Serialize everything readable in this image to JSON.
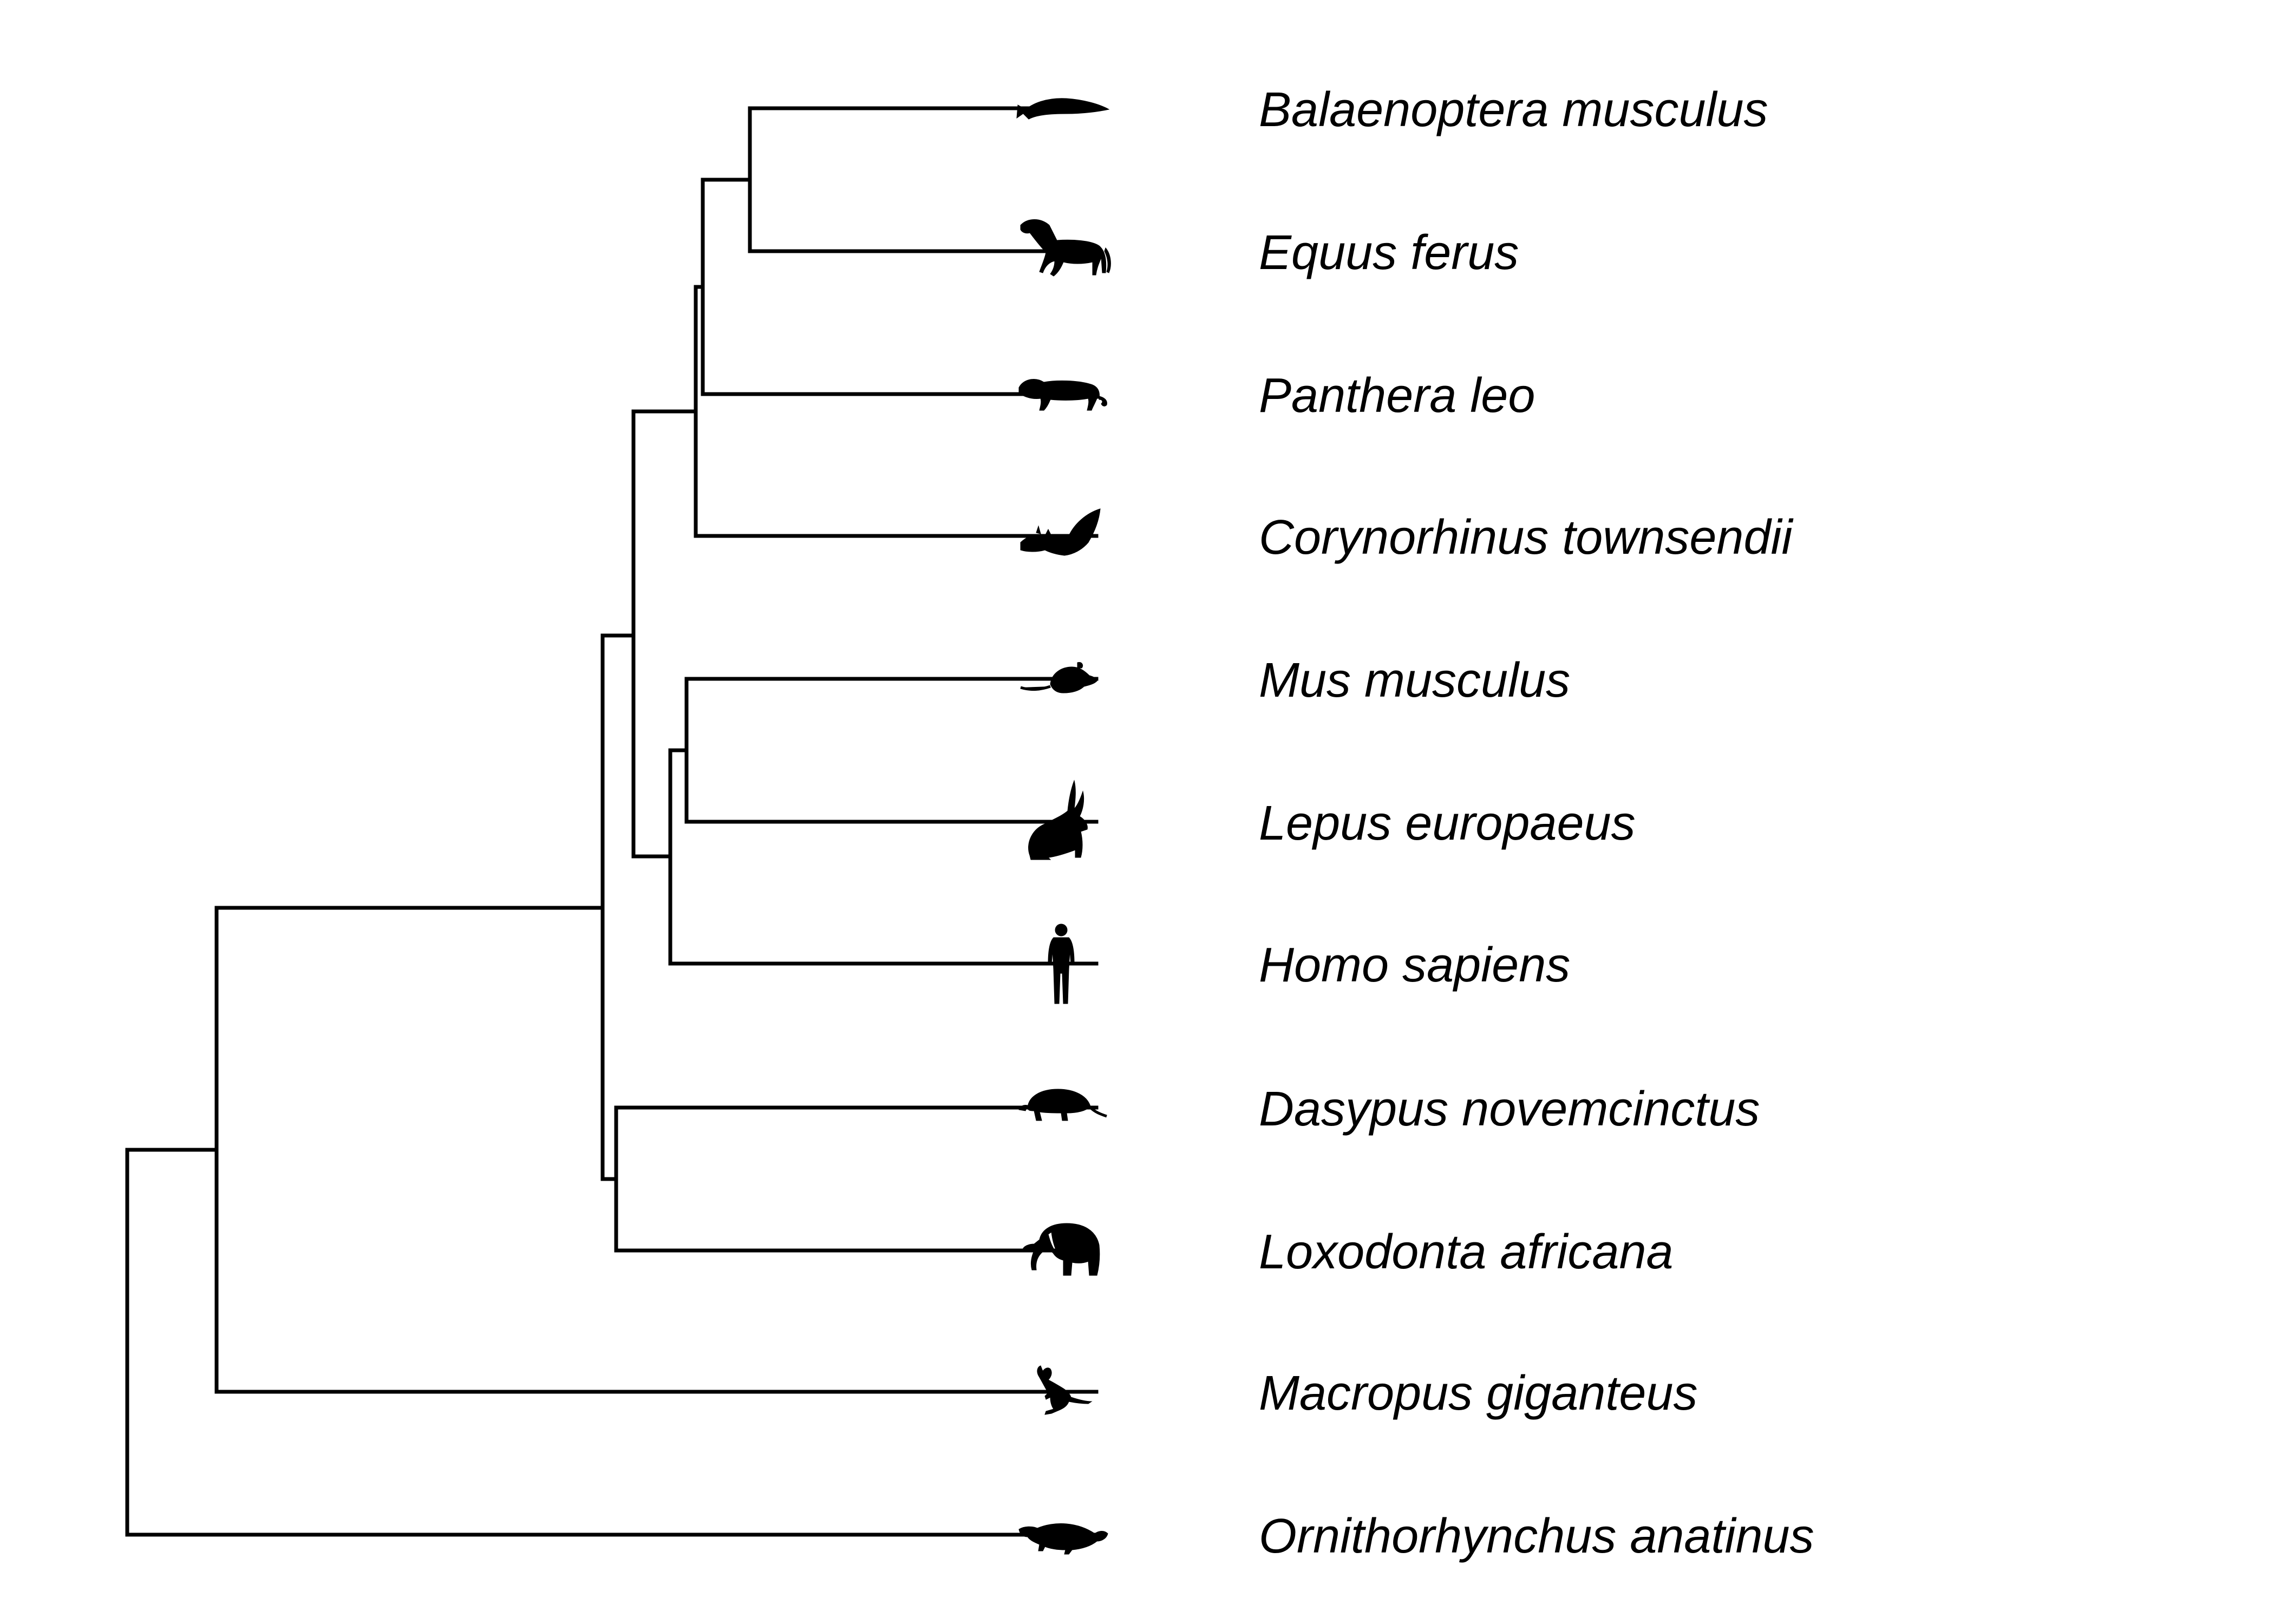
{
  "taxa": [
    {
      "name": "Balaenoptera musculus",
      "icon": "whale-icon"
    },
    {
      "name": "Equus ferus",
      "icon": "horse-icon"
    },
    {
      "name": "Panthera leo",
      "icon": "lion-icon"
    },
    {
      "name": "Corynorhinus townsendii",
      "icon": "bat-icon"
    },
    {
      "name": "Mus musculus",
      "icon": "mouse-icon"
    },
    {
      "name": "Lepus europaeus",
      "icon": "hare-icon"
    },
    {
      "name": "Homo sapiens",
      "icon": "human-icon"
    },
    {
      "name": "Dasypus novemcinctus",
      "icon": "armadillo-icon"
    },
    {
      "name": "Loxodonta africana",
      "icon": "elephant-icon"
    },
    {
      "name": "Macropus giganteus",
      "icon": "kangaroo-icon"
    },
    {
      "name": "Ornithorhynchus anatinus",
      "icon": "platypus-icon"
    }
  ],
  "colors": {
    "line": "#000000",
    "background": "#ffffff"
  }
}
